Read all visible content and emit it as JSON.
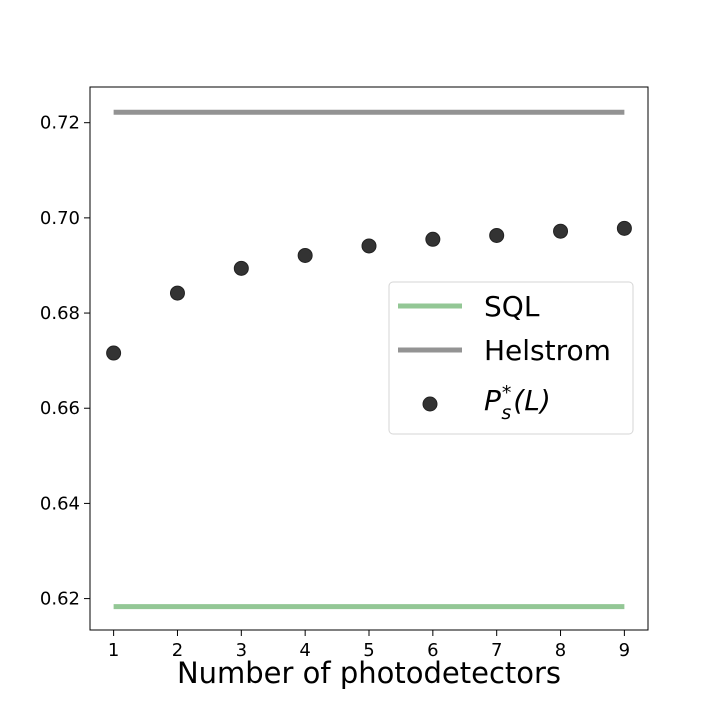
{
  "chart_data": {
    "type": "scatter",
    "title": "",
    "xlabel": "Number of photodetectors",
    "ylabel": "",
    "xlim": [
      0.63,
      9.37
    ],
    "ylim": [
      0.6134,
      0.7275
    ],
    "x_ticks": [
      1,
      2,
      3,
      4,
      5,
      6,
      7,
      8,
      9
    ],
    "y_ticks": [
      0.62,
      0.64,
      0.66,
      0.68,
      0.7,
      0.72
    ],
    "y_tick_labels": [
      "0.62",
      "0.64",
      "0.66",
      "0.68",
      "0.70",
      "0.72"
    ],
    "grid": false,
    "legend_position": "center-right",
    "series": [
      {
        "name": "SQL",
        "kind": "line",
        "color": "#93c795",
        "x": [
          1,
          9
        ],
        "y": [
          0.6183,
          0.6183
        ]
      },
      {
        "name": "Helstrom",
        "kind": "line",
        "color": "#939393",
        "x": [
          1,
          9
        ],
        "y": [
          0.7222,
          0.7222
        ]
      },
      {
        "name": "P_s^*(L)",
        "kind": "scatter",
        "color": "#333333",
        "x": [
          1,
          2,
          3,
          4,
          5,
          6,
          7,
          8,
          9
        ],
        "y": [
          0.6716,
          0.6842,
          0.6894,
          0.6921,
          0.6941,
          0.6955,
          0.6963,
          0.6972,
          0.6978
        ]
      }
    ]
  }
}
